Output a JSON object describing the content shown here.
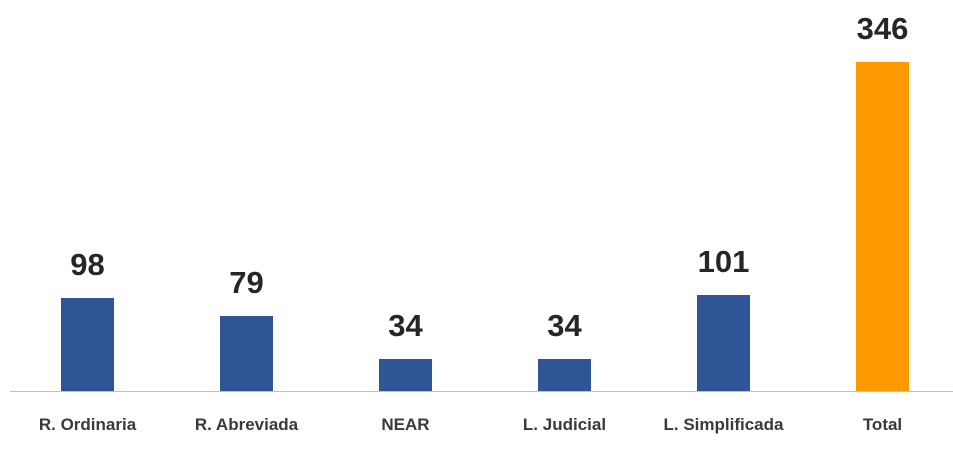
{
  "chart_data": {
    "type": "bar",
    "categories": [
      "R. Ordinaria",
      "R. Abreviada",
      "NEAR",
      "L. Judicial",
      "L. Simplificada",
      "Total"
    ],
    "values": [
      98,
      79,
      34,
      34,
      101,
      346
    ],
    "colors": [
      "#2f5597",
      "#2f5597",
      "#2f5597",
      "#2f5597",
      "#2f5597",
      "#ff9900"
    ]
  }
}
